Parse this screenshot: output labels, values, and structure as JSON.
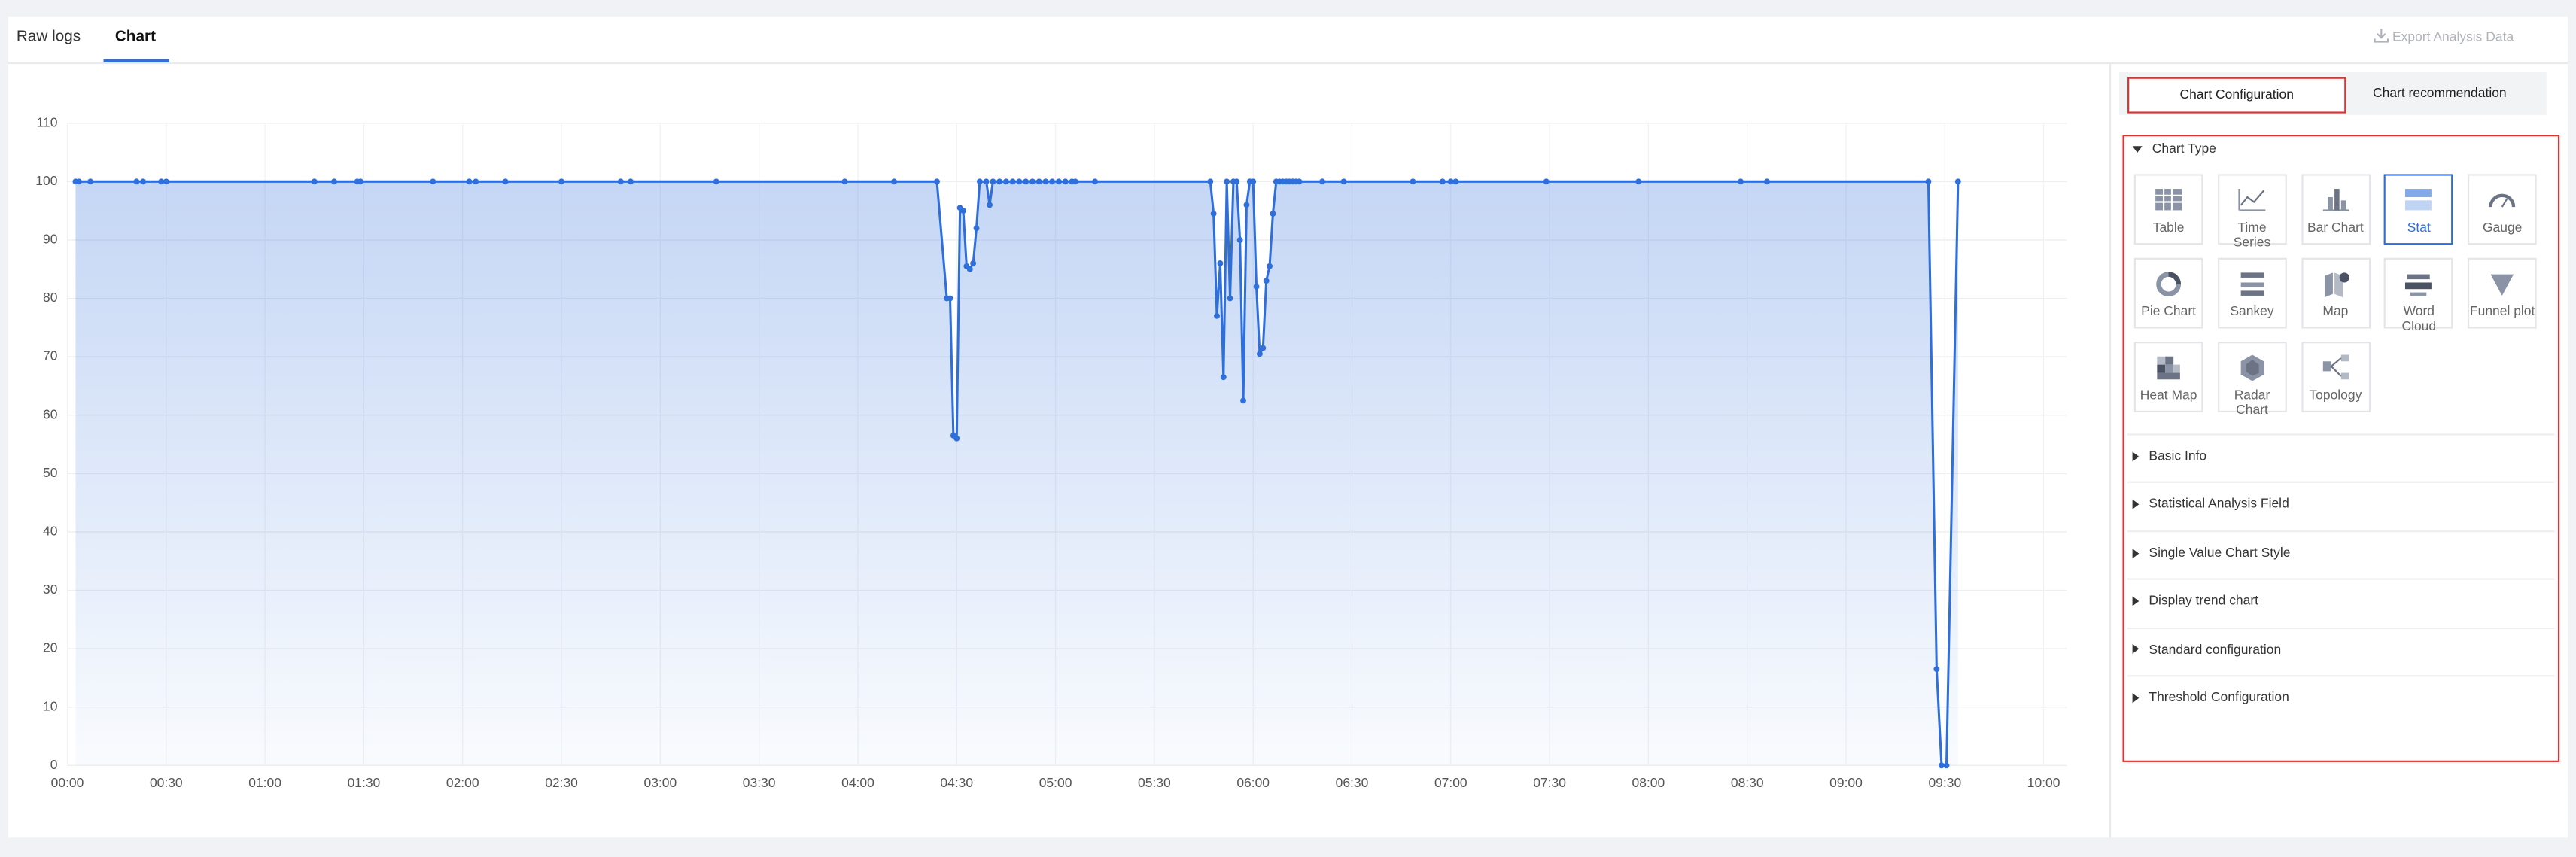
{
  "tabs": [
    "Raw logs",
    "Chart"
  ],
  "export_button": "Export Analysis Data",
  "chart_data": {
    "type": "line",
    "area": true,
    "color": "#2f6fdb",
    "grid": true,
    "x": [
      2.5,
      3.5,
      7,
      21,
      23,
      28.5,
      30,
      75,
      81,
      88,
      89,
      111,
      122,
      124,
      133,
      150,
      168,
      171,
      197,
      236,
      251,
      264,
      267,
      268,
      269,
      270,
      271,
      272,
      273,
      274,
      275,
      276,
      277,
      279,
      280,
      281,
      283,
      285,
      287,
      289,
      291,
      293,
      295,
      297,
      299,
      301,
      303,
      305,
      306,
      312,
      347,
      348,
      349,
      350,
      351,
      352,
      353,
      354,
      355,
      356,
      357,
      358,
      359,
      360,
      361,
      362,
      363,
      364,
      365,
      366,
      367,
      368,
      369,
      370,
      371,
      372,
      373,
      374,
      381,
      387.5,
      408.5,
      417.5,
      420,
      421.5,
      449,
      477,
      508,
      516,
      565,
      567.5,
      569,
      570.5,
      574
    ],
    "values": [
      100,
      100,
      100,
      100,
      100,
      100,
      100,
      100,
      100,
      100,
      100,
      100,
      100,
      100,
      100,
      100,
      100,
      100,
      100,
      100,
      100,
      100,
      80,
      80,
      56.5,
      56,
      95.5,
      95,
      85.5,
      85,
      86,
      92,
      100,
      100,
      96,
      100,
      100,
      100,
      100,
      100,
      100,
      100,
      100,
      100,
      100,
      100,
      100,
      100,
      100,
      100,
      100,
      94.5,
      77,
      86,
      66.5,
      100,
      80,
      100,
      100,
      90,
      62.5,
      96,
      100,
      100,
      82,
      70.5,
      71.5,
      83,
      85.5,
      94.5,
      100,
      100,
      100,
      100,
      100,
      100,
      100,
      100,
      100,
      100,
      100,
      100,
      100,
      100,
      100,
      100,
      100,
      100,
      100,
      16.5,
      0,
      0,
      100
    ],
    "xlim": [
      0,
      607
    ],
    "xticks": [
      {
        "value": 0,
        "label": "00:00"
      },
      {
        "value": 30,
        "label": "00:30"
      },
      {
        "value": 60,
        "label": "01:00"
      },
      {
        "value": 90,
        "label": "01:30"
      },
      {
        "value": 120,
        "label": "02:00"
      },
      {
        "value": 150,
        "label": "02:30"
      },
      {
        "value": 180,
        "label": "03:00"
      },
      {
        "value": 210,
        "label": "03:30"
      },
      {
        "value": 240,
        "label": "04:00"
      },
      {
        "value": 270,
        "label": "04:30"
      },
      {
        "value": 300,
        "label": "05:00"
      },
      {
        "value": 330,
        "label": "05:30"
      },
      {
        "value": 360,
        "label": "06:00"
      },
      {
        "value": 390,
        "label": "06:30"
      },
      {
        "value": 420,
        "label": "07:00"
      },
      {
        "value": 450,
        "label": "07:30"
      },
      {
        "value": 480,
        "label": "08:00"
      },
      {
        "value": 510,
        "label": "08:30"
      },
      {
        "value": 540,
        "label": "09:00"
      },
      {
        "value": 570,
        "label": "09:30"
      },
      {
        "value": 600,
        "label": "10:00"
      }
    ],
    "ylim": [
      0,
      110
    ],
    "yticks": [
      0,
      10,
      20,
      30,
      40,
      50,
      60,
      70,
      80,
      90,
      100,
      110
    ]
  },
  "config_tabs": [
    "Chart Configuration",
    "Chart recommendation"
  ],
  "chart_type": {
    "title": "Chart Type",
    "options": [
      "Table",
      "Time Series",
      "Bar Chart",
      "Stat",
      "Gauge",
      "Pie Chart",
      "Sankey",
      "Map",
      "Word Cloud",
      "Funnel plot",
      "Heat Map",
      "Radar Chart",
      "Topology"
    ]
  },
  "sections": [
    "Basic Info",
    "Statistical Analysis Field",
    "Single Value Chart Style",
    "Display trend chart",
    "Standard configuration",
    "Threshold Configuration"
  ]
}
